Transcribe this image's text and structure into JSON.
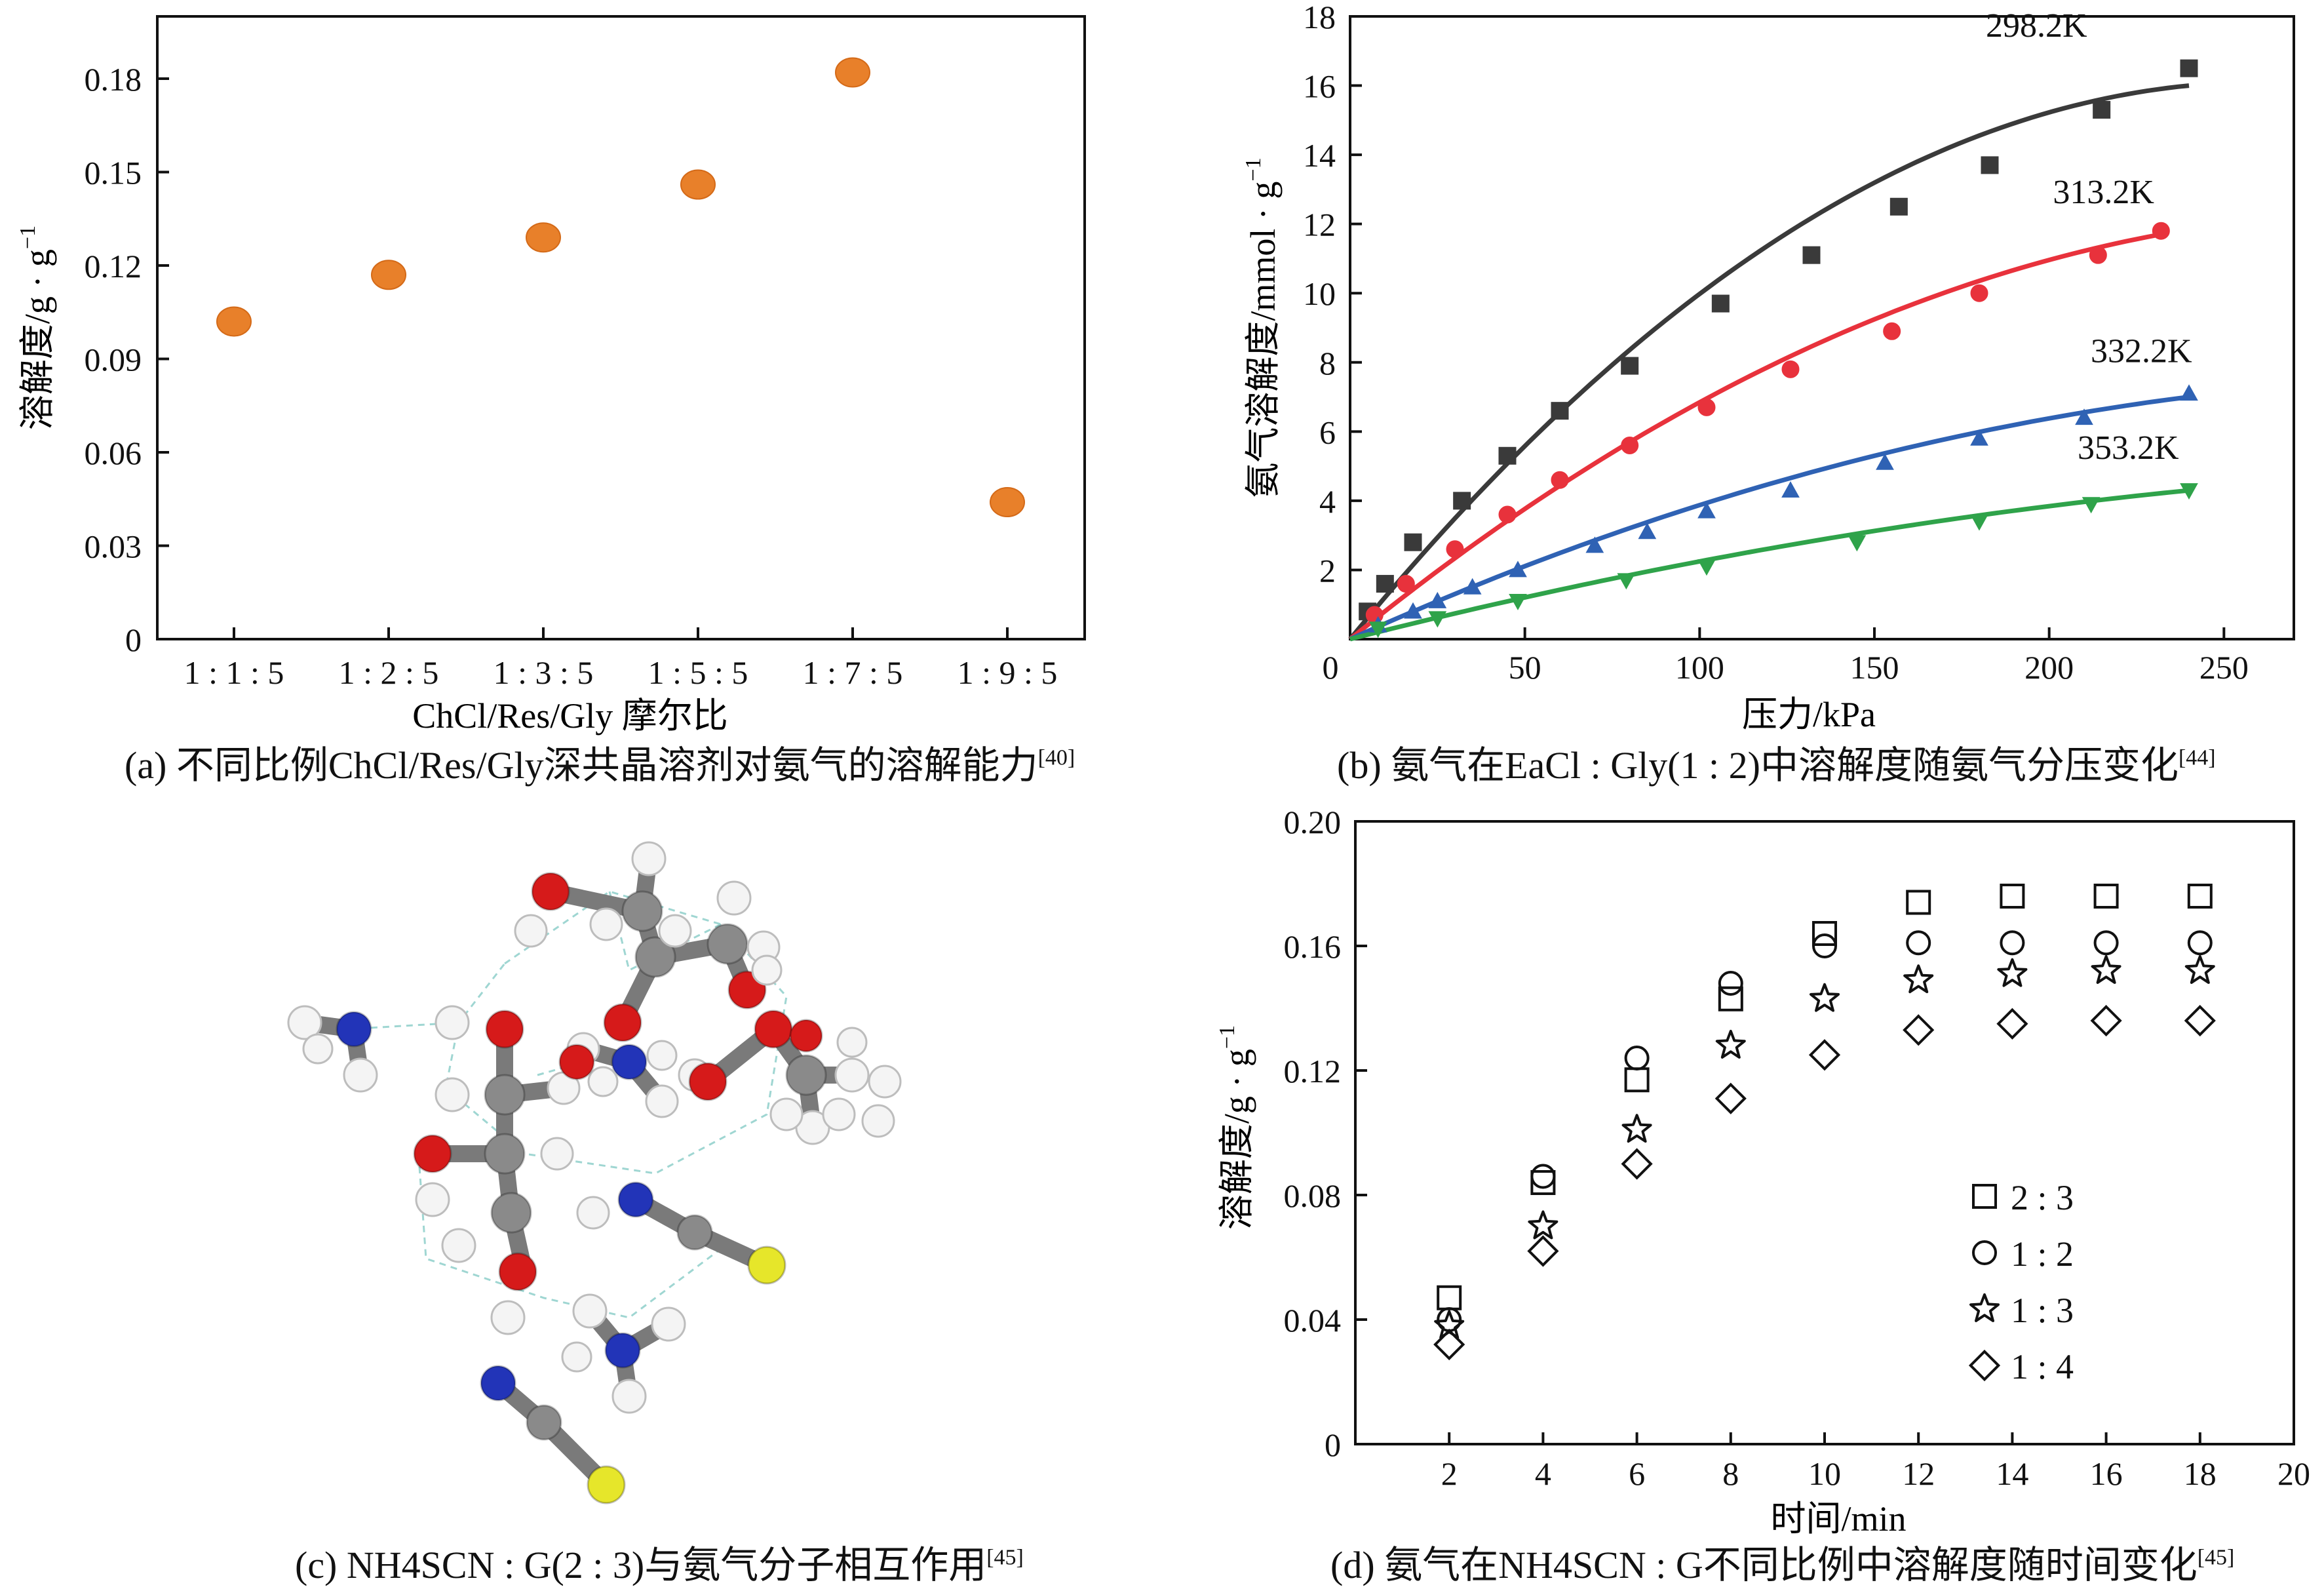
{
  "colors": {
    "orange": "#e8802a",
    "black_series": "#3a3a3a",
    "red_series": "#e8323c",
    "blue_series": "#2f62b4",
    "green_series": "#2fa34a",
    "axis": "#111111"
  },
  "chart_data": [
    {
      "id": "a",
      "type": "scatter",
      "caption": "(a) 不同比例ChCl/Res/Gly深共晶溶剂对氨气的溶解能力",
      "caption_ref": "[40]",
      "xlabel": "ChCl/Res/Gly 摩尔比",
      "ylabel": "溶解度/g · g",
      "ylabel_sup": "−1",
      "categories": [
        "1 : 1 : 5",
        "1 : 2 : 5",
        "1 : 3 : 5",
        "1 : 5 : 5",
        "1 : 7 : 5",
        "1 : 9 : 5"
      ],
      "values": [
        0.102,
        0.117,
        0.129,
        0.146,
        0.182,
        0.044
      ],
      "ylim": [
        0,
        0.2
      ],
      "yticks": [
        "0",
        "0.03",
        "0.06",
        "0.09",
        "0.12",
        "0.15",
        "0.18"
      ],
      "ytick_values": [
        0,
        0.03,
        0.06,
        0.09,
        0.12,
        0.15,
        0.18
      ]
    },
    {
      "id": "b",
      "type": "scatter",
      "caption": "(b) 氨气在EaCl : Gly(1 : 2)中溶解度随氨气分压变化",
      "caption_ref": "[44]",
      "xlabel": "压力/kPa",
      "ylabel": "氨气溶解度/mmol · g",
      "ylabel_sup": "−1",
      "xlim": [
        0,
        270
      ],
      "ylim": [
        0,
        18
      ],
      "xticks": [
        "50",
        "100",
        "150",
        "200",
        "250"
      ],
      "xtick_values": [
        50,
        100,
        150,
        200,
        250
      ],
      "yticks": [
        "2",
        "4",
        "6",
        "8",
        "10",
        "12",
        "14",
        "16",
        "18"
      ],
      "ytick_values": [
        2,
        4,
        6,
        8,
        10,
        12,
        14,
        16,
        18
      ],
      "origin_label": "0",
      "series": [
        {
          "name": "298.2K",
          "marker": "square",
          "color": "#3a3a3a",
          "points": [
            [
              5,
              0.8
            ],
            [
              10,
              1.6
            ],
            [
              18,
              2.8
            ],
            [
              32,
              4.0
            ],
            [
              45,
              5.3
            ],
            [
              60,
              6.6
            ],
            [
              80,
              7.9
            ],
            [
              106,
              9.7
            ],
            [
              132,
              11.1
            ],
            [
              157,
              12.5
            ],
            [
              183,
              13.7
            ],
            [
              215,
              15.3
            ],
            [
              240,
              16.5
            ]
          ],
          "fit_end": 16.0
        },
        {
          "name": "313.2K",
          "marker": "circle",
          "color": "#e8323c",
          "points": [
            [
              7,
              0.7
            ],
            [
              16,
              1.6
            ],
            [
              30,
              2.6
            ],
            [
              45,
              3.6
            ],
            [
              60,
              4.6
            ],
            [
              80,
              5.6
            ],
            [
              102,
              6.7
            ],
            [
              126,
              7.8
            ],
            [
              155,
              8.9
            ],
            [
              180,
              10.0
            ],
            [
              214,
              11.1
            ],
            [
              232,
              11.8
            ]
          ],
          "fit_end": 11.7
        },
        {
          "name": "332.2K",
          "marker": "triangle-up",
          "color": "#2f62b4",
          "points": [
            [
              8,
              0.4
            ],
            [
              18,
              0.8
            ],
            [
              25,
              1.1
            ],
            [
              35,
              1.5
            ],
            [
              48,
              2.0
            ],
            [
              70,
              2.7
            ],
            [
              85,
              3.1
            ],
            [
              102,
              3.7
            ],
            [
              126,
              4.3
            ],
            [
              153,
              5.1
            ],
            [
              180,
              5.8
            ],
            [
              210,
              6.4
            ],
            [
              240,
              7.1
            ]
          ],
          "fit_end": 7.0
        },
        {
          "name": "353.2K",
          "marker": "triangle-down",
          "color": "#2fa34a",
          "points": [
            [
              8,
              0.3
            ],
            [
              25,
              0.6
            ],
            [
              48,
              1.1
            ],
            [
              79,
              1.7
            ],
            [
              102,
              2.1
            ],
            [
              145,
              2.8
            ],
            [
              180,
              3.4
            ],
            [
              212,
              3.9
            ],
            [
              240,
              4.3
            ]
          ],
          "fit_end": 4.3
        }
      ]
    },
    {
      "id": "d",
      "type": "scatter",
      "caption": "(d) 氨气在NH4SCN : G不同比例中溶解度随时间变化",
      "caption_ref": "[45]",
      "xlabel": "时间/min",
      "ylabel": "溶解度/g · g",
      "ylabel_sup": "−1",
      "xlim": [
        0,
        20
      ],
      "ylim": [
        0,
        0.2
      ],
      "xticks": [
        "2",
        "4",
        "6",
        "8",
        "10",
        "12",
        "14",
        "16",
        "18",
        "20"
      ],
      "xtick_values": [
        2,
        4,
        6,
        8,
        10,
        12,
        14,
        16,
        18,
        20
      ],
      "yticks": [
        "0",
        "0.04",
        "0.08",
        "0.12",
        "0.16",
        "0.20"
      ],
      "ytick_values": [
        0,
        0.04,
        0.08,
        0.12,
        0.16,
        0.2
      ],
      "x": [
        2,
        4,
        6,
        8,
        10,
        12,
        14,
        16,
        18
      ],
      "series": [
        {
          "name": "2 : 3",
          "marker": "square",
          "values": [
            0.047,
            0.084,
            0.117,
            0.143,
            0.164,
            0.174,
            0.176,
            0.176,
            0.176
          ]
        },
        {
          "name": "1 : 2",
          "marker": "circle",
          "values": [
            0.04,
            0.086,
            0.124,
            0.148,
            0.16,
            0.161,
            0.161,
            0.161,
            0.161
          ]
        },
        {
          "name": "1 : 3",
          "marker": "star",
          "values": [
            0.038,
            0.07,
            0.101,
            0.128,
            0.143,
            0.149,
            0.151,
            0.152,
            0.152
          ]
        },
        {
          "name": "1 : 4",
          "marker": "diamond",
          "values": [
            0.032,
            0.062,
            0.09,
            0.111,
            0.125,
            0.133,
            0.135,
            0.136,
            0.136
          ]
        }
      ]
    }
  ],
  "panel_c": {
    "caption": "(c) NH4SCN : G(2 : 3)与氨气分子相互作用",
    "caption_ref": "[45]",
    "atom_colors": {
      "O": "#d61a1a",
      "H": "#f4f4f4",
      "C": "#8a8a8a",
      "N": "#2234b8",
      "S": "#e6e62a"
    }
  }
}
